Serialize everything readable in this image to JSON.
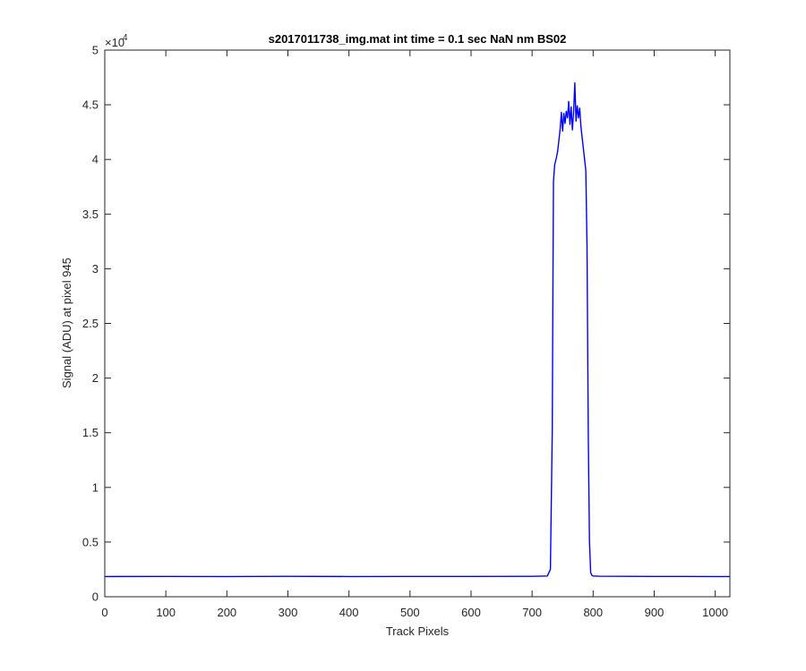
{
  "chart_data": {
    "type": "line",
    "title": "s2017011738_img.mat int time = 0.1 sec  NaN nm BS02",
    "xlabel": "Track Pixels",
    "ylabel": "Signal (ADU) at pixel 945",
    "xlim": [
      0,
      1024
    ],
    "ylim": [
      0,
      50000
    ],
    "x_ticks": [
      0,
      100,
      200,
      300,
      400,
      500,
      600,
      700,
      800,
      900,
      1000
    ],
    "x_tick_labels": [
      "0",
      "100",
      "200",
      "300",
      "400",
      "500",
      "600",
      "700",
      "800",
      "900",
      "1000"
    ],
    "y_ticks": [
      0,
      5000,
      10000,
      15000,
      20000,
      25000,
      30000,
      35000,
      40000,
      45000,
      50000
    ],
    "y_tick_labels": [
      "0",
      "0.5",
      "1",
      "1.5",
      "2",
      "2.5",
      "3",
      "3.5",
      "4",
      "4.5",
      "5"
    ],
    "y_exponent_base": "×10",
    "y_exponent_power": "4",
    "grid": false,
    "series": [
      {
        "color": "#0000ff",
        "x": [
          0,
          100,
          200,
          300,
          400,
          500,
          600,
          700,
          725,
          730,
          733,
          735,
          737,
          740,
          742,
          744,
          746,
          748,
          750,
          752,
          754,
          756,
          758,
          760,
          762,
          764,
          766,
          768,
          770,
          772,
          774,
          776,
          778,
          780,
          782,
          784,
          786,
          788,
          790,
          792,
          794,
          796,
          798,
          800,
          810,
          900,
          1000,
          1024
        ],
        "y": [
          1850,
          1860,
          1850,
          1870,
          1850,
          1860,
          1860,
          1870,
          1900,
          2500,
          15000,
          38000,
          39500,
          40200,
          40800,
          41800,
          42800,
          44300,
          42600,
          44200,
          43300,
          44400,
          43800,
          45300,
          43200,
          44800,
          42700,
          44300,
          47000,
          43500,
          44900,
          43800,
          44700,
          43000,
          42000,
          41000,
          40000,
          39000,
          32000,
          15000,
          5000,
          2200,
          1950,
          1900,
          1880,
          1860,
          1850,
          1850
        ]
      }
    ]
  }
}
